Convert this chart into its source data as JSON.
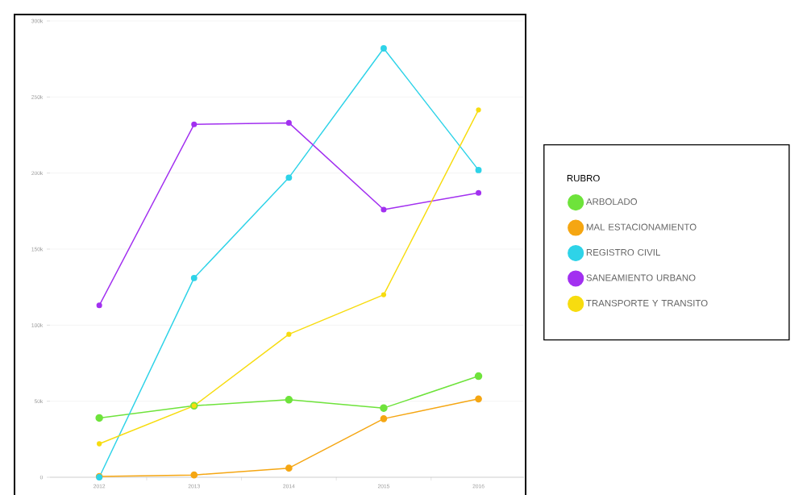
{
  "chart_data": {
    "type": "line",
    "legend_title": "RUBRO",
    "categories": [
      "2012",
      "2013",
      "2014",
      "2015",
      "2016"
    ],
    "series": [
      {
        "name": "ARBOLADO",
        "color": "#6ee33b",
        "values": [
          39000,
          47000,
          51000,
          45500,
          66500
        ]
      },
      {
        "name": "MAL ESTACIONAMIENTO",
        "color": "#f5a612",
        "values": [
          500,
          1500,
          6000,
          38500,
          51500
        ]
      },
      {
        "name": "REGISTRO CIVIL",
        "color": "#2ed3e8",
        "values": [
          0,
          131000,
          197000,
          282000,
          202000
        ]
      },
      {
        "name": "SANEAMIENTO URBANO",
        "color": "#a230f0",
        "values": [
          113000,
          232000,
          233000,
          176000,
          187000
        ]
      },
      {
        "name": "TRANSPORTE Y TRANSITO",
        "color": "#f7dc0f",
        "values": [
          22000,
          47000,
          94000,
          120000,
          241500
        ]
      }
    ],
    "ylim": [
      0,
      300000
    ],
    "yticks": [
      0,
      {
        "value": 50000,
        "label": "50k"
      },
      {
        "value": 100000,
        "label": "100k"
      },
      {
        "value": 150000,
        "label": "150k"
      },
      {
        "value": 200000,
        "label": "200k"
      },
      {
        "value": 250000,
        "label": "250k"
      },
      {
        "value": 300000,
        "label": "300k"
      }
    ],
    "grid": "y",
    "legend": "right",
    "marker": "circle",
    "line_style": "solid"
  }
}
